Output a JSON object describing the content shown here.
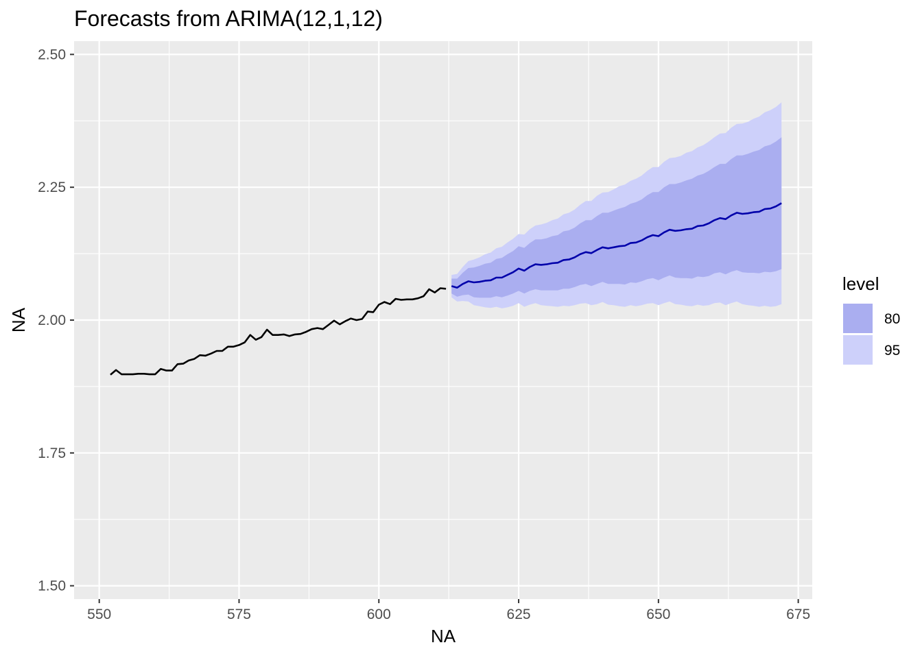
{
  "chart_data": {
    "type": "line",
    "title": "Forecasts from ARIMA(12,1,12)",
    "xlabel": "NA",
    "ylabel": "NA",
    "xlim": [
      545.5,
      677.5
    ],
    "ylim": [
      1.475,
      2.525
    ],
    "x_ticks": [
      550,
      575,
      600,
      625,
      650,
      675
    ],
    "y_ticks": [
      1.5,
      1.75,
      2.0,
      2.25,
      2.5
    ],
    "x_tick_labels": [
      "550",
      "575",
      "600",
      "625",
      "650",
      "675"
    ],
    "y_tick_labels": [
      "1.50",
      "1.75",
      "2.00",
      "2.25",
      "2.50"
    ],
    "grid": true,
    "legend": {
      "title": "level",
      "position": "right",
      "items": [
        {
          "label": "80",
          "color": "#aaaef0"
        },
        {
          "label": "95",
          "color": "#cdd0fa"
        }
      ]
    },
    "colors": {
      "panel": "#ebebeb",
      "grid_major": "#ffffff",
      "history_line": "#000000",
      "forecast_line": "#0000aa",
      "band_80": "#aaaef0",
      "band_95": "#cdd0fa"
    },
    "history": {
      "x_start": 552,
      "values": [
        1.897,
        1.906,
        1.898,
        1.898,
        1.898,
        1.899,
        1.899,
        1.898,
        1.898,
        1.908,
        1.905,
        1.905,
        1.917,
        1.918,
        1.924,
        1.927,
        1.934,
        1.933,
        1.937,
        1.942,
        1.942,
        1.95,
        1.95,
        1.953,
        1.958,
        1.972,
        1.963,
        1.968,
        1.982,
        1.972,
        1.972,
        1.973,
        1.97,
        1.973,
        1.974,
        1.978,
        1.983,
        1.985,
        1.983,
        1.991,
        1.999,
        1.992,
        1.998,
        2.003,
        2.0,
        2.002,
        2.016,
        2.015,
        2.029,
        2.034,
        2.03,
        2.04,
        2.038,
        2.039,
        2.039,
        2.041,
        2.045,
        2.058,
        2.052,
        2.06,
        2.059
      ]
    },
    "forecast": {
      "x_start": 613,
      "mean": [
        2.064,
        2.061,
        2.068,
        2.073,
        2.071,
        2.072,
        2.074,
        2.075,
        2.08,
        2.08,
        2.085,
        2.09,
        2.097,
        2.093,
        2.1,
        2.105,
        2.104,
        2.105,
        2.107,
        2.108,
        2.113,
        2.114,
        2.118,
        2.124,
        2.128,
        2.126,
        2.132,
        2.137,
        2.135,
        2.137,
        2.139,
        2.14,
        2.145,
        2.146,
        2.15,
        2.156,
        2.16,
        2.158,
        2.165,
        2.17,
        2.168,
        2.169,
        2.171,
        2.172,
        2.177,
        2.178,
        2.182,
        2.188,
        2.192,
        2.19,
        2.197,
        2.202,
        2.2,
        2.201,
        2.203,
        2.204,
        2.209,
        2.21,
        2.214,
        2.22
      ],
      "lo80": [
        2.05,
        2.044,
        2.047,
        2.048,
        2.043,
        2.042,
        2.042,
        2.042,
        2.045,
        2.043,
        2.046,
        2.05,
        2.055,
        2.05,
        2.055,
        2.058,
        2.056,
        2.056,
        2.056,
        2.056,
        2.059,
        2.059,
        2.062,
        2.066,
        2.068,
        2.064,
        2.068,
        2.072,
        2.068,
        2.068,
        2.068,
        2.067,
        2.071,
        2.07,
        2.073,
        2.077,
        2.079,
        2.075,
        2.08,
        2.084,
        2.08,
        2.079,
        2.079,
        2.078,
        2.082,
        2.081,
        2.083,
        2.088,
        2.09,
        2.086,
        2.091,
        2.094,
        2.09,
        2.089,
        2.089,
        2.088,
        2.091,
        2.09,
        2.092,
        2.096
      ],
      "hi80": [
        2.078,
        2.078,
        2.089,
        2.098,
        2.099,
        2.102,
        2.106,
        2.108,
        2.115,
        2.117,
        2.124,
        2.13,
        2.139,
        2.136,
        2.145,
        2.152,
        2.152,
        2.154,
        2.158,
        2.16,
        2.167,
        2.169,
        2.174,
        2.182,
        2.188,
        2.188,
        2.196,
        2.202,
        2.202,
        2.206,
        2.21,
        2.213,
        2.219,
        2.222,
        2.227,
        2.235,
        2.241,
        2.241,
        2.25,
        2.256,
        2.256,
        2.259,
        2.263,
        2.266,
        2.272,
        2.275,
        2.281,
        2.288,
        2.294,
        2.294,
        2.303,
        2.31,
        2.31,
        2.313,
        2.317,
        2.32,
        2.327,
        2.33,
        2.336,
        2.344
      ],
      "lo95": [
        2.043,
        2.035,
        2.036,
        2.035,
        2.028,
        2.026,
        2.024,
        2.023,
        2.025,
        2.022,
        2.024,
        2.027,
        2.032,
        2.025,
        2.029,
        2.032,
        2.028,
        2.027,
        2.026,
        2.025,
        2.027,
        2.026,
        2.028,
        2.031,
        2.032,
        2.028,
        2.03,
        2.034,
        2.029,
        2.028,
        2.026,
        2.025,
        2.028,
        2.026,
        2.028,
        2.031,
        2.032,
        2.028,
        2.032,
        2.035,
        2.03,
        2.029,
        2.027,
        2.026,
        2.029,
        2.027,
        2.028,
        2.032,
        2.033,
        2.028,
        2.032,
        2.035,
        2.03,
        2.028,
        2.027,
        2.025,
        2.027,
        2.025,
        2.026,
        2.03
      ],
      "hi95": [
        2.085,
        2.087,
        2.1,
        2.111,
        2.114,
        2.118,
        2.124,
        2.127,
        2.135,
        2.138,
        2.146,
        2.153,
        2.162,
        2.161,
        2.171,
        2.178,
        2.18,
        2.183,
        2.188,
        2.191,
        2.199,
        2.202,
        2.208,
        2.217,
        2.224,
        2.224,
        2.234,
        2.24,
        2.241,
        2.246,
        2.252,
        2.255,
        2.262,
        2.266,
        2.272,
        2.281,
        2.288,
        2.288,
        2.298,
        2.305,
        2.306,
        2.309,
        2.315,
        2.318,
        2.325,
        2.329,
        2.336,
        2.344,
        2.351,
        2.352,
        2.362,
        2.369,
        2.37,
        2.373,
        2.379,
        2.383,
        2.391,
        2.395,
        2.401,
        2.41
      ]
    }
  }
}
